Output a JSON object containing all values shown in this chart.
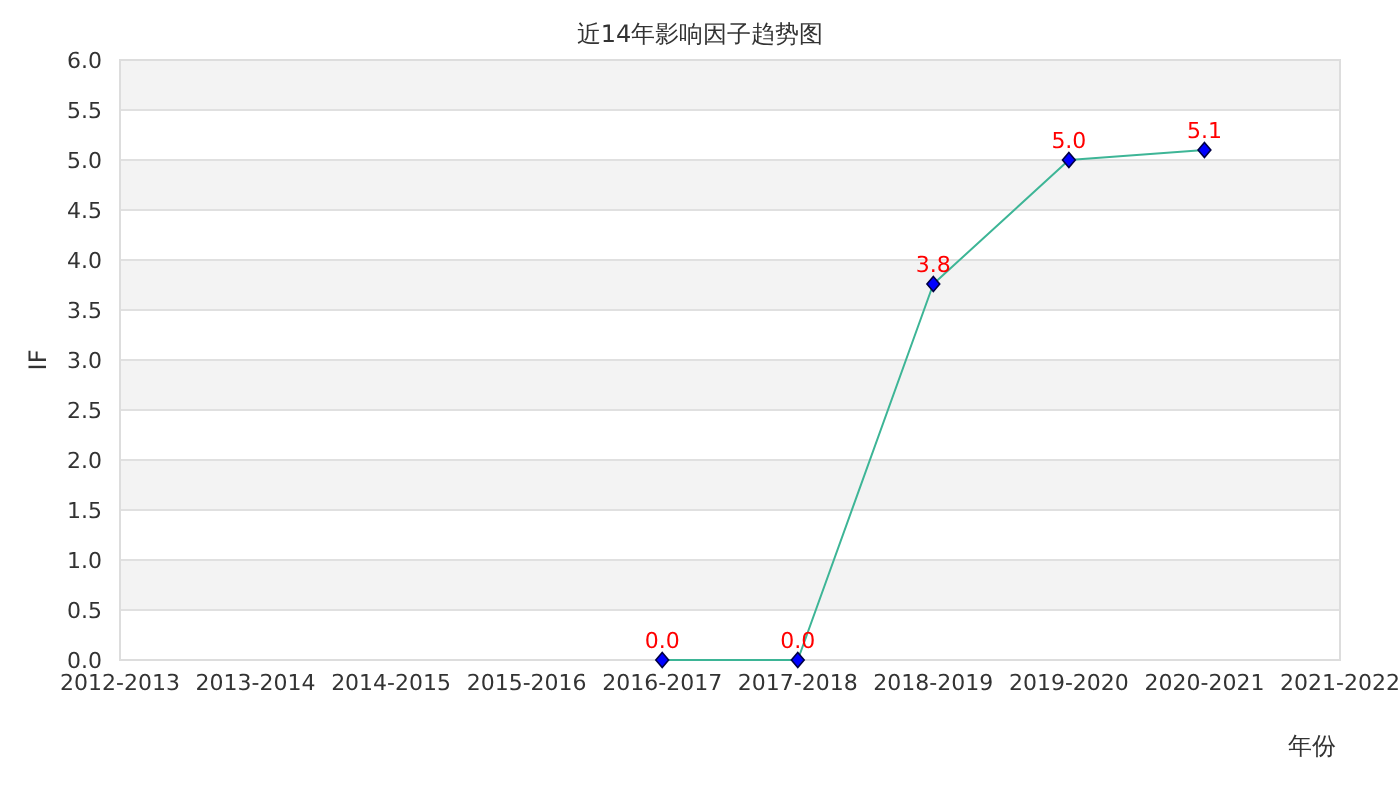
{
  "chart_data": {
    "type": "line",
    "title": "近14年影响因子趋势图",
    "xlabel": "年份",
    "ylabel": "IF",
    "categories": [
      "2012-2013",
      "2013-2014",
      "2014-2015",
      "2015-2016",
      "2016-2017",
      "2017-2018",
      "2018-2019",
      "2019-2020",
      "2020-2021",
      "2021-2022"
    ],
    "series": [
      {
        "color": "#3db596",
        "colors": [
          null,
          null,
          null,
          null,
          "#0000ff",
          "#0000ff",
          "#0000ff",
          "#0000ff",
          "#0000ff",
          null
        ],
        "values": [
          null,
          null,
          null,
          null,
          0,
          0,
          3.76,
          5.0,
          5.1,
          null
        ],
        "value_labels": [
          null,
          null,
          null,
          null,
          "0.0",
          "0.0",
          "3.8",
          "5.0",
          "5.1",
          null
        ]
      }
    ],
    "ylim": [
      0,
      6
    ],
    "yticks": [
      {
        "value": 0,
        "label": "0.0"
      },
      {
        "value": 0.5,
        "label": "0.5"
      },
      {
        "value": 1,
        "label": "1.0"
      },
      {
        "value": 1.5,
        "label": "1.5"
      },
      {
        "value": 2,
        "label": "2.0"
      },
      {
        "value": 2.5,
        "label": "2.5"
      },
      {
        "value": 3,
        "label": "3.0"
      },
      {
        "value": 3.5,
        "label": "3.5"
      },
      {
        "value": 4,
        "label": "4.0"
      },
      {
        "value": 4.5,
        "label": "4.5"
      },
      {
        "value": 5,
        "label": "5.0"
      },
      {
        "value": 5.5,
        "label": "5.5"
      },
      {
        "value": 6,
        "label": "6.0"
      }
    ],
    "grid": "y",
    "marker": "diamond",
    "line_style": "solid"
  }
}
